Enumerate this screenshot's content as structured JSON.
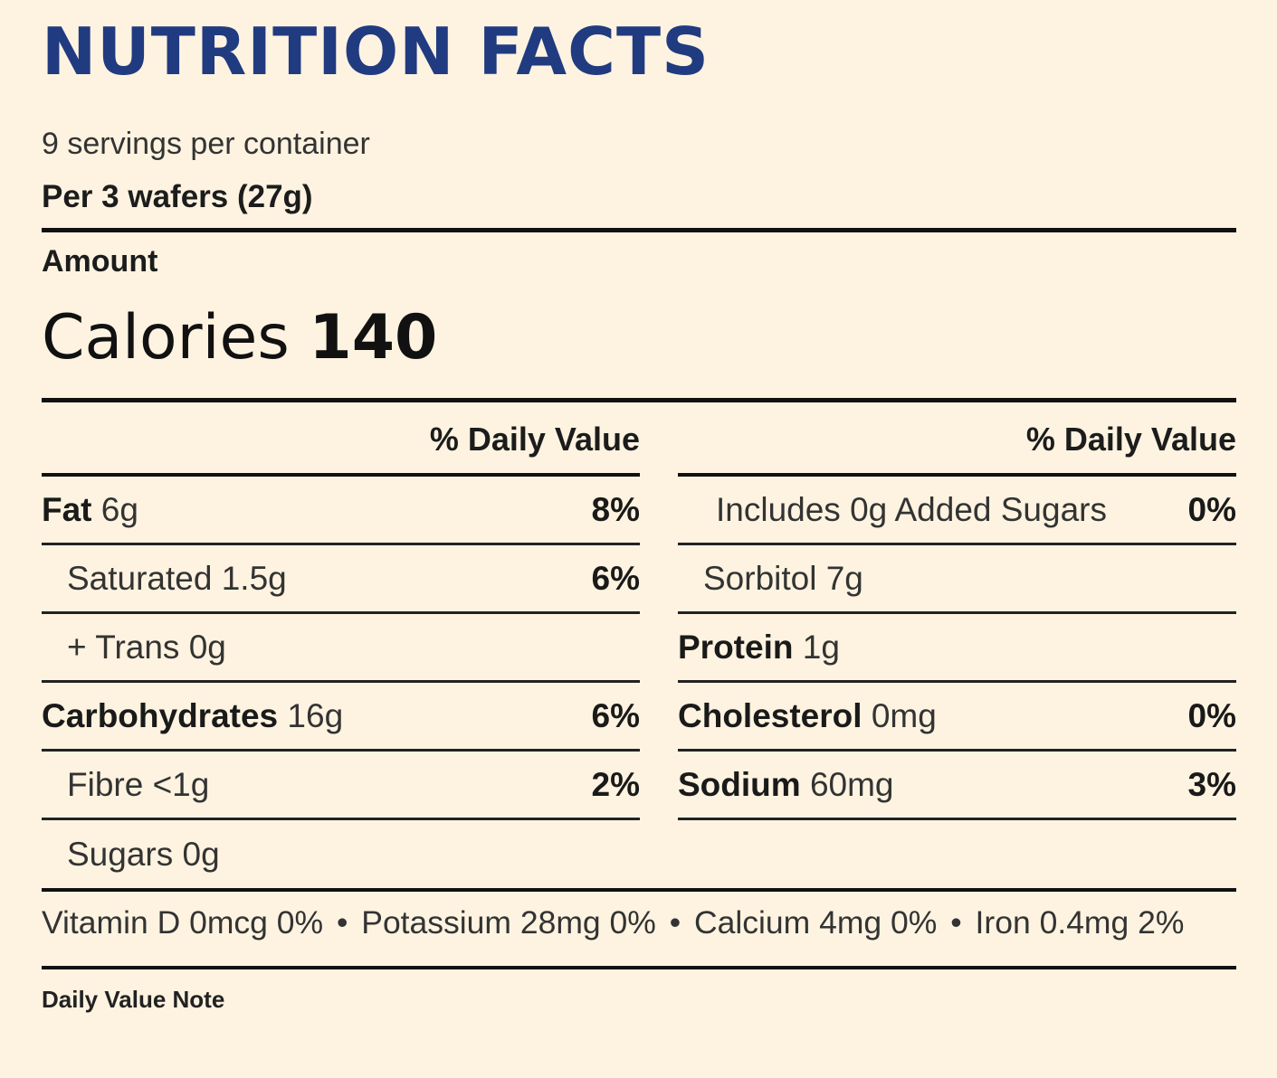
{
  "title": "NUTRITION FACTS",
  "servings": "9 servings per container",
  "serving_size": "Per 3 wafers (27g)",
  "amount_label": "Amount",
  "calories": {
    "label": "Calories",
    "value": "140"
  },
  "daily_value_header": "% Daily Value",
  "left_rows": [
    {
      "bold": "Fat",
      "amount": "6g",
      "pct": "8%"
    },
    {
      "bold": "",
      "amount": "Saturated 1.5g",
      "pct": "6%"
    },
    {
      "bold": "",
      "amount": "+ Trans 0g",
      "pct": ""
    },
    {
      "bold": "Carbohydrates",
      "amount": "16g",
      "pct": "6%"
    },
    {
      "bold": "",
      "amount": "Fibre <1g",
      "pct": "2%"
    },
    {
      "bold": "",
      "amount": "Sugars 0g",
      "pct": ""
    }
  ],
  "right_rows": [
    {
      "bold": "",
      "amount": "Includes 0g Added Sugars",
      "pct": "0%"
    },
    {
      "bold": "",
      "amount": "Sorbitol 7g",
      "pct": ""
    },
    {
      "bold": "Protein",
      "amount": "1g",
      "pct": ""
    },
    {
      "bold": "Cholesterol",
      "amount": "0mg",
      "pct": "0%"
    },
    {
      "bold": "Sodium",
      "amount": "60mg",
      "pct": "3%"
    }
  ],
  "vitamins": [
    "Vitamin D 0mcg 0%",
    "Potassium 28mg 0%",
    "Calcium 4mg 0%",
    "Iron 0.4mg 2%"
  ],
  "separator": "•",
  "note": "Daily Value Note"
}
